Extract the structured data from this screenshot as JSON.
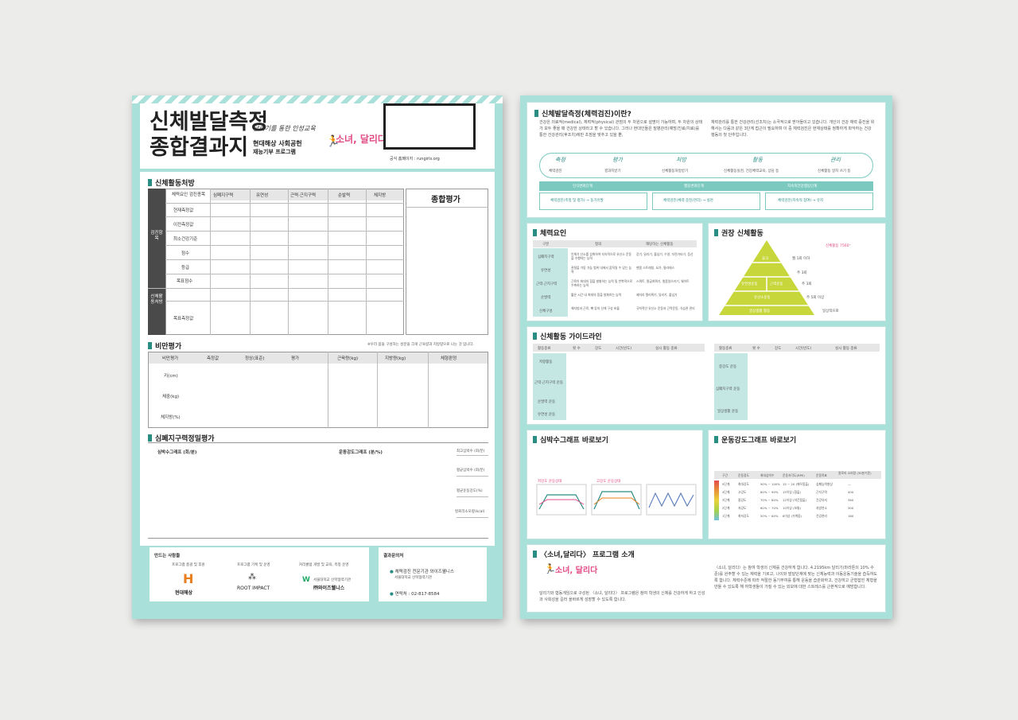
{
  "left": {
    "title_line1": "신체발달측정",
    "title_line2": "종합결과지",
    "slogan": "달리기를 통한 인성교육",
    "org_line1": "현대해상 사회공헌",
    "org_line2": "재능기부 프로그램",
    "brand": "소녀, 달리다",
    "website": "공식 홈페이지 : rungirls.org",
    "activity_section": "신체활동처방",
    "activity_col_header": "체력요인 검진종목",
    "activity_cols": [
      "심폐지구력",
      "유연성",
      "근력·근지구력",
      "순발력",
      "체지방"
    ],
    "overall_label": "종합평가",
    "group1_label": "검진항목",
    "group2_label": "신체활동처방",
    "activity_rows": [
      "현재측정값",
      "이전측정값",
      "최소건강기준",
      "점수",
      "등급",
      "목표점수",
      "목표측정값"
    ],
    "obesity_section": "비만평가",
    "obesity_note": "※우리 몸을 구성하는 성분을 크게 근육량과 지방량으로 나눈 것 입니다.",
    "obesity_cols": [
      "비만평가",
      "측정값",
      "정상(표준)",
      "평가",
      "근육량(kg)",
      "지방량(kg)",
      "체형판정"
    ],
    "obesity_rows": [
      "키(cm)",
      "체중(kg)",
      "체지방(%)"
    ],
    "cardio_section": "심폐지구력정밀평가",
    "hr_graph_label": "심박수그래프 (회/분)",
    "intensity_graph_label": "운동강도그래프 (분/%)",
    "cardio_metrics": [
      "최고심박수 (회/분)",
      "평균심박수 (회/분)",
      "평균운동강도(%)",
      "칼로리소모량(kcal)"
    ],
    "makers_label": "만드는 사람들",
    "maker_roles": [
      "프로그램 총괄 및 후원",
      "프로그램 기획 및 운영",
      "커리큘럼 개발 및 교육, 측정 운영"
    ],
    "maker_names": [
      "현대해상",
      "ROOT IMPACT",
      "㈜와이즈웰니스"
    ],
    "maker_sub": [
      "",
      "",
      "서울대학교 산학협력기관"
    ],
    "contact_label": "결과문의처",
    "contact_org": "체력검진 전문기관 와이즈웰니스",
    "contact_org_sub": "서울대학교 산학협력기관",
    "contact_phone": "연락처 : 02-817-8584"
  },
  "right": {
    "intro_title": "신체발달측정(체력검진)이란?",
    "intro_text_left": "건강은 의료적(medical), 체력적(physical) 관점의 두 차원으로 설명이 가능하며, 두 차원의 상태가 모두 좋을 때 건강한 상태라고 할 수 있습니다. 그러나 현대인들은 질병관리(예방/진료/치료)를 통한 건강관리(후조치)에만 초점을 맞추고 있을 뿐,",
    "intro_text_right": "체력관리를 통한 건강관리(선조치)는 소극적으로 받아들이고 있습니다. 개인의 건강 체력 증진을 위해서는 다음과 같은 3단계 접근이 필요하며 이 중 체력검진은 현재상태를 정확하게 파악하는 건강행동의 첫 단추입니다.",
    "flow_steps": [
      "체력검진",
      "결과지받기",
      "신체활동처방받기",
      "신체활동실천, 건강체력교육, 상담 등",
      "신체활동 일지 쓰기 등"
    ],
    "flow_steps_hand": [
      "측정",
      "평가",
      "처방",
      "활동",
      "관리"
    ],
    "stages": [
      "인식변화단계",
      "행동변화단계",
      "지속적건강행동단계"
    ],
    "stage_sub": [
      "체력검진(측정 및 평가) → 동기유발",
      "체력검진(체력 증진/관리) → 실천",
      "체력검진(지속적 참여) → 유지"
    ],
    "fitness_title": "체력요인",
    "fitness_cols": [
      "구분",
      "정의",
      "해당하는 신체활동"
    ],
    "fitness_rows": [
      "심폐지구력",
      "유연성",
      "근력·근지구력",
      "순발력",
      "신체구성"
    ],
    "fitness_defs": [
      "인체가 산소를 섭취하여 지속적으로 유산소 운동을 수행하는 능력",
      "관절을 가동 가능 범위 내에서 움직일 수 있는 능력",
      "근육이 최대의 힘을 발휘하는 능력 및 반복적으로 수축하는 능력",
      "짧은 시간 내 최대의 힘을 발휘하는 능력",
      "체지방과 근육, 뼈 등의 신체 구성 비율"
    ],
    "fitness_acts": [
      "걷기, 달리기, 줄넘기, 수영, 자전거타기, 등산",
      "맨몸 스트레칭, 요가, 필라테스",
      "스쿼트, 팔굽혀펴기, 윗몸일으키기, 웨이트",
      "제자리 멀리뛰기, 달리기, 줄넘기",
      "규칙적인 유산소 운동과 근력운동, 식습관 관리"
    ],
    "pyramid_title": "권장 신체활동",
    "pyramid_note": "신체활동 7560⁺",
    "pyramid_levels": [
      "휴식",
      "유연성운동",
      "근력운동",
      "유산소운동",
      "일상생활 활동"
    ],
    "pyramid_freq": [
      "월 1회 이하",
      "주 3회",
      "주 3회",
      "주 5회 이상",
      "일상적으로"
    ],
    "guide_title": "신체활동 가이드라인",
    "guide_cols": [
      "활동종류",
      "횟 수",
      "강도",
      "시간(빈도)",
      "실시 활동 종류"
    ],
    "guide_rows": [
      "저항활동",
      "근력·근지구력 운동",
      "순발력 운동",
      "유연성 운동"
    ],
    "guide_cols2": [
      "활동종류",
      "횟 수",
      "강도",
      "시간(빈도)",
      "실시 활동 종류"
    ],
    "guide_rows2": [
      "중강도 운동",
      "심폐지구력 운동",
      "일상생활 운동"
    ],
    "hr_title": "심박수그래프 바로보기",
    "intensity_title": "운동강도그래프 바로보기",
    "hr_chart_labels": [
      "저강도 운동상태",
      "고강도 운동상태"
    ],
    "intensity_cols": [
      "구간",
      "운동정도",
      "최대심박수",
      "운동자각도(RPE)",
      "운동목표",
      "칼로리 소비량 (30분기준)"
    ],
    "intensity_rows": [
      {
        "zone": "5단계",
        "level": "최대강도",
        "hr": "90% ~ 100%",
        "rpe": "15 ~ 20 (매우힘듦)",
        "goal": "심폐능력향상",
        "kcal": "—"
      },
      {
        "zone": "4단계",
        "level": "고강도",
        "hr": "80% ~ 90%",
        "rpe": "15이상 (힘듦)",
        "goal": "근지구력",
        "kcal": "400"
      },
      {
        "zone": "3단계",
        "level": "중강도",
        "hr": "70% ~ 80%",
        "rpe": "12이상 (약간힘듦)",
        "goal": "건강유지",
        "kcal": "360"
      },
      {
        "zone": "2단계",
        "level": "저강도",
        "hr": "60% ~ 70%",
        "rpe": "10이상 (보통)",
        "goal": "지방연소",
        "kcal": "300"
      },
      {
        "zone": "1단계",
        "level": "최저강도",
        "hr": "50% ~ 60%",
        "rpe": "6이상 (가벼움)",
        "goal": "건강관리",
        "kcal": "180"
      }
    ],
    "program_title": "〈소녀,달리다〉 프로그램 소개",
    "program_text_left": "달리기와 협동게임으로 구성된 〈소녀, 달리다〉 프로그램은 참여 학생의 신체를 건강하게 하고 인성과 사회성을 길러 올바르게 성장할 수 있도록 합니다.",
    "program_text_right": "〈소녀, 달리다〉는 참여 학생의 신체를 건강하게 합니다. 4.2195km 달리기(마라톤의 10% 수준)를 완주할 수 있는 체력을 기르고, 나이와 발달단계에 맞는 신체능력과 이동운동기술을 습득하도록 합니다. 체력수준에 따라 적절한 동기부여를 통해 운동을 습관화하고, 건강하고 균형잡힌 체형을 만들 수 있도록 해 여학생들이 가질 수 있는 외모에 대한 스트레스를 근본적으로 예방합니다."
  },
  "colors": {
    "teal": "#2a8d84",
    "mint": "#a9e0d9",
    "dark": "#4a4a4a",
    "pyramid": "#c7d63a"
  }
}
